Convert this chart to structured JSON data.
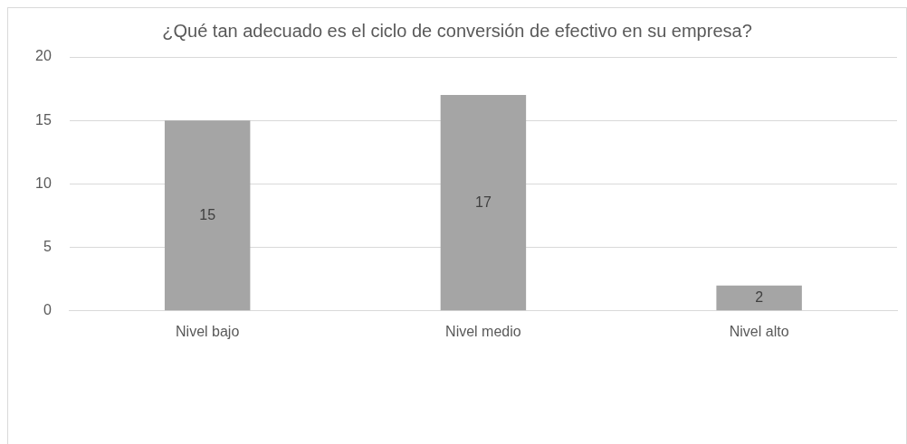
{
  "chart_data": {
    "type": "bar",
    "title": "¿Qué tan adecuado es el ciclo de conversión de efectivo en su empresa?",
    "categories": [
      "Nivel bajo",
      "Nivel medio",
      "Nivel alto"
    ],
    "values": [
      15,
      17,
      2
    ],
    "color": "#a5a5a5",
    "ylim": [
      0,
      20
    ],
    "yticks": [
      0,
      5,
      10,
      15,
      20
    ],
    "grid": "y",
    "legend": false,
    "data_labels": true
  }
}
